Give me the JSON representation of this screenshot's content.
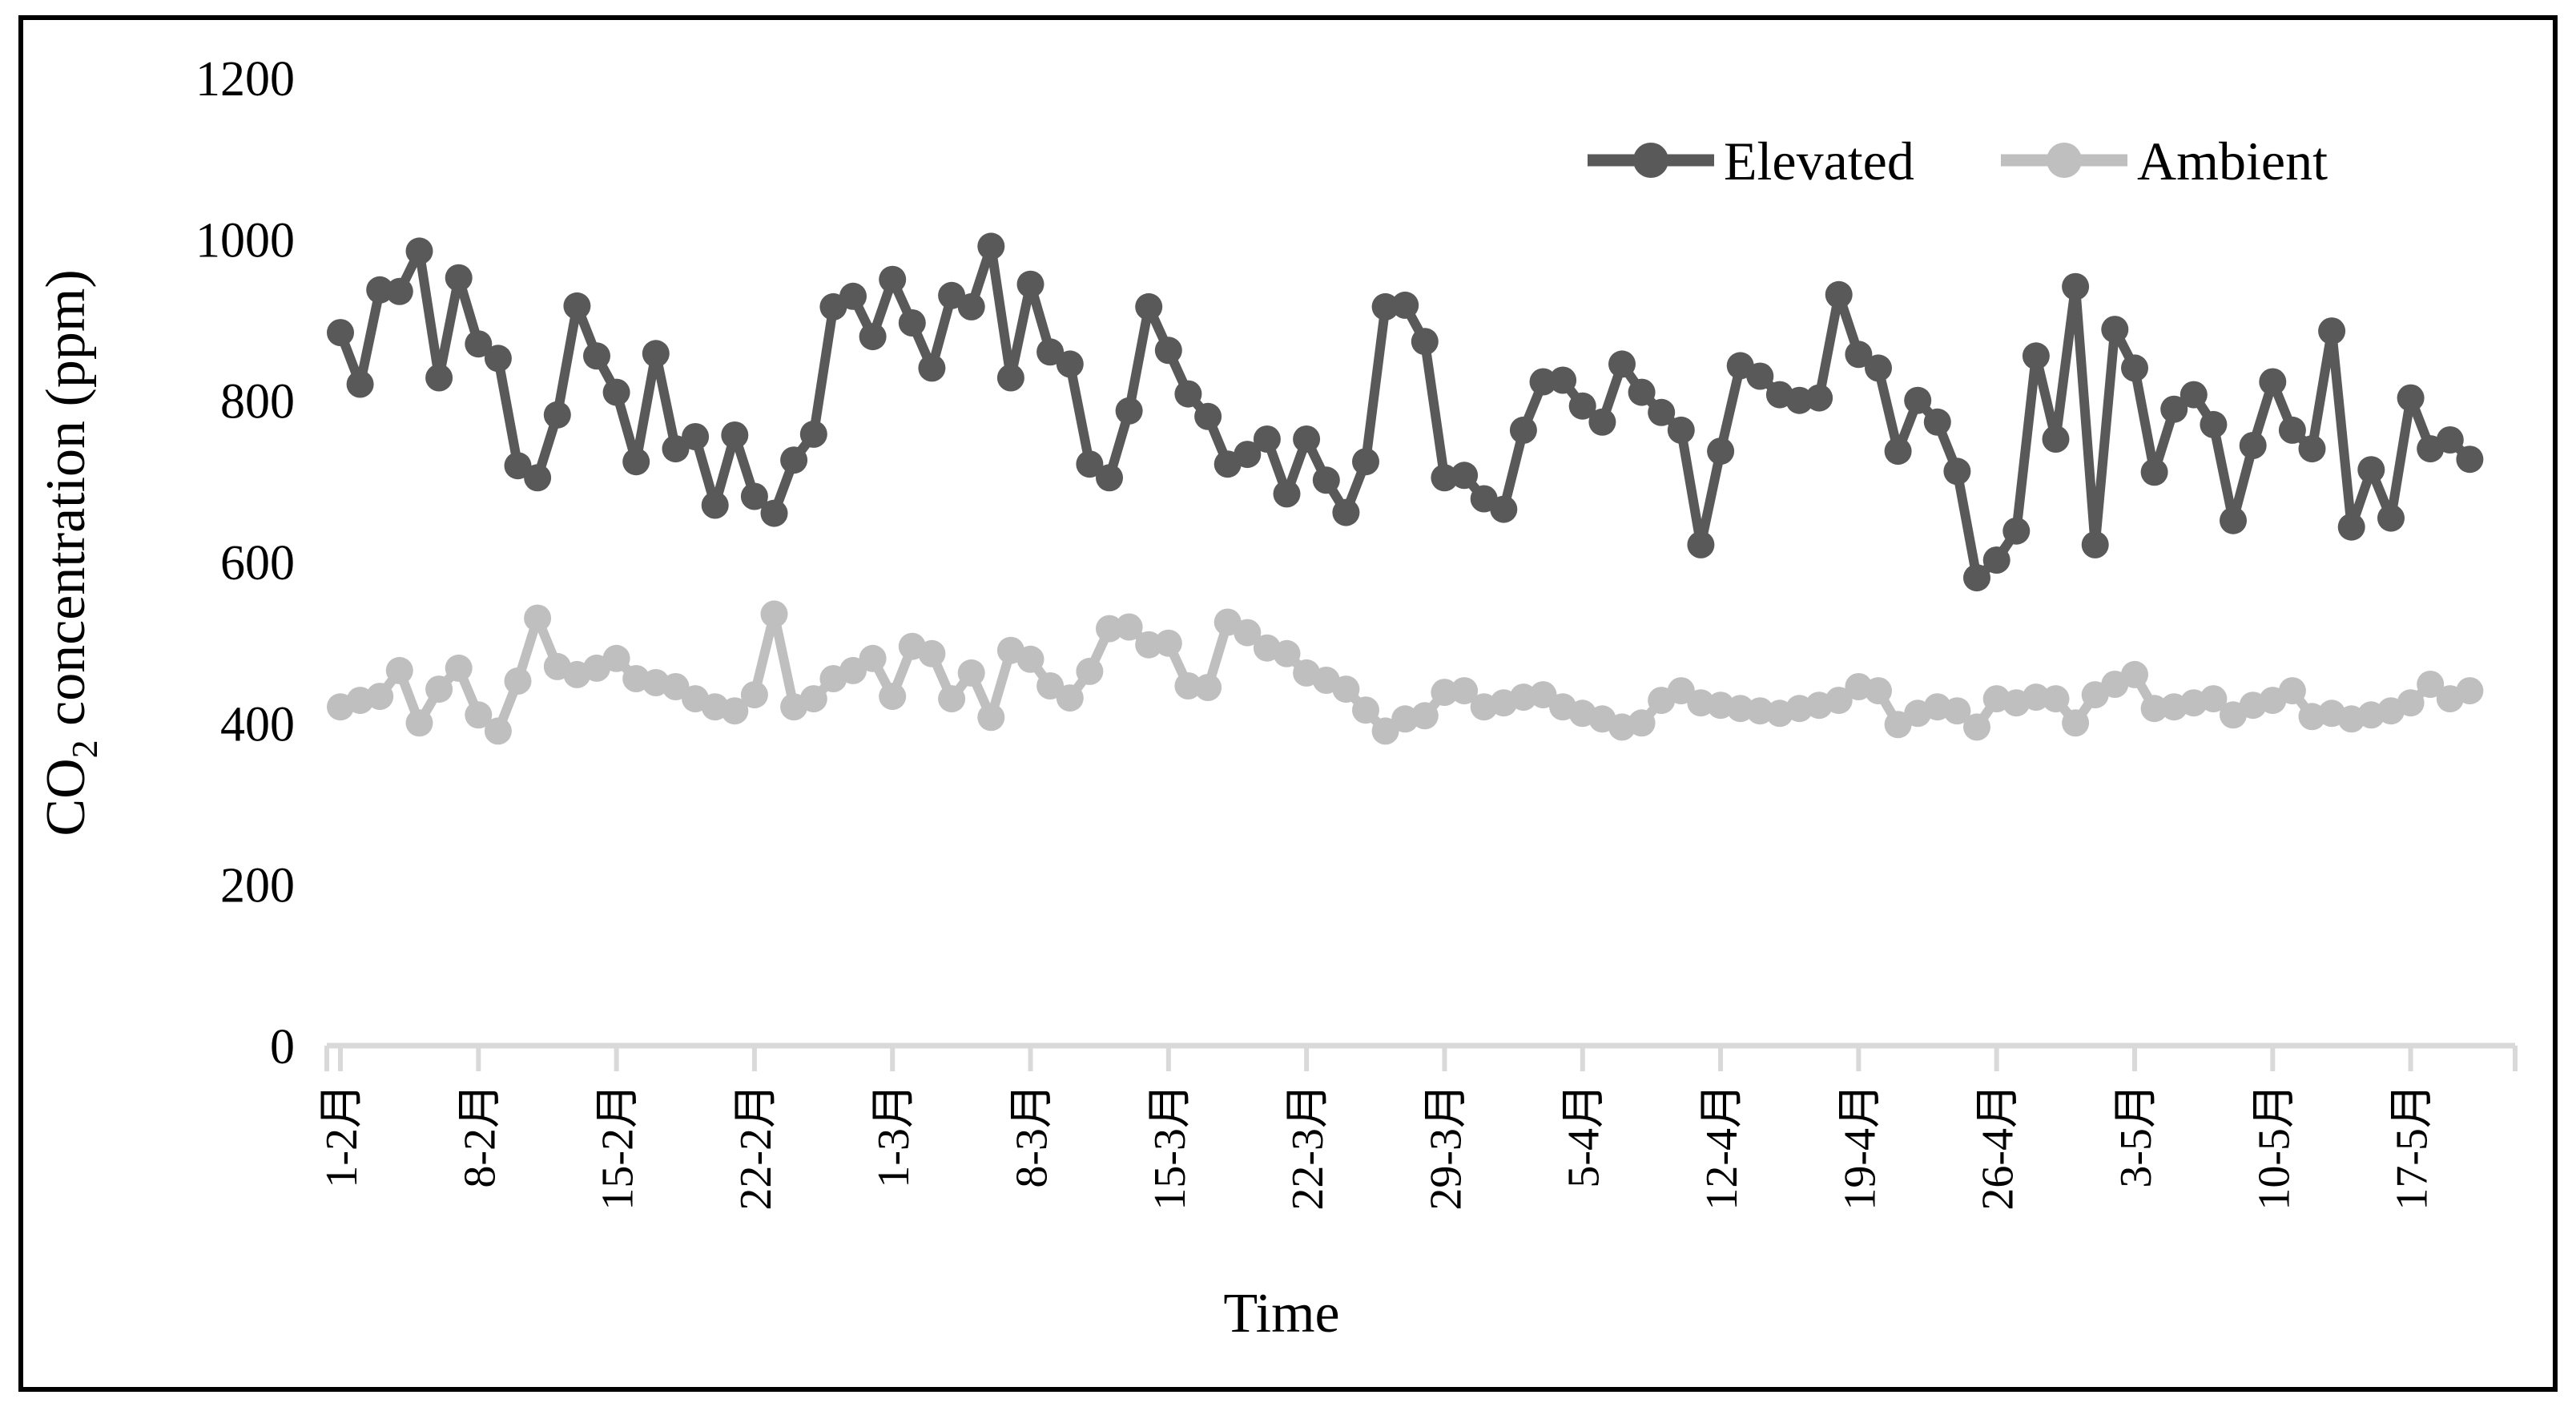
{
  "figure": {
    "background": "#ffffff",
    "border_color": "#000000"
  },
  "chart_data": {
    "type": "line",
    "title": "",
    "xlabel": "Time",
    "ylabel": "CO2 concentration (ppm)",
    "ylabel_parts": {
      "pre": "CO",
      "sub": "2",
      "post": " concentration (ppm)"
    },
    "ylim": [
      0,
      1200
    ],
    "yticks": [
      0,
      200,
      400,
      600,
      800,
      1000,
      1200
    ],
    "grid": false,
    "legend_position": "top-right-inside",
    "axis_color": "#d9d9d9",
    "text_color": "#000000",
    "n_points": 109,
    "x_start_label": "1-2月",
    "x_interval": "daily",
    "x_tick_day_indices": [
      0,
      7,
      14,
      21,
      28,
      35,
      42,
      49,
      56,
      63,
      70,
      77,
      84,
      91,
      98,
      105
    ],
    "x_tick_labels": [
      "1-2月",
      "8-2月",
      "15-2月",
      "22-2月",
      "1-3月",
      "8-3月",
      "15-3月",
      "22-3月",
      "29-3月",
      "5-4月",
      "12-4月",
      "19-4月",
      "26-4月",
      "3-5月",
      "10-5月",
      "17-5月"
    ],
    "series": [
      {
        "name": "Elevated",
        "color": "#595959",
        "values": [
          884,
          820,
          937,
          935,
          985,
          828,
          952,
          870,
          852,
          719,
          704,
          782,
          917,
          855,
          810,
          724,
          858,
          740,
          755,
          670,
          757,
          681,
          660,
          726,
          758,
          916,
          929,
          879,
          950,
          896,
          840,
          930,
          916,
          991,
          828,
          944,
          860,
          845,
          721,
          704,
          787,
          916,
          862,
          808,
          780,
          721,
          733,
          752,
          684,
          752,
          701,
          661,
          724,
          916,
          918,
          873,
          704,
          707,
          678,
          665,
          763,
          823,
          825,
          793,
          773,
          845,
          810,
          785,
          763,
          621,
          737,
          843,
          830,
          807,
          800,
          803,
          931,
          857,
          840,
          737,
          800,
          773,
          712,
          580,
          602,
          638,
          855,
          752,
          941,
          621,
          888,
          840,
          711,
          789,
          807,
          770,
          651,
          744,
          823,
          763,
          740,
          886,
          643,
          714,
          654,
          803,
          740,
          751,
          727
        ]
      },
      {
        "name": "Ambient",
        "color": "#bfbfbf",
        "values": [
          420,
          428,
          433,
          465,
          400,
          442,
          468,
          410,
          390,
          452,
          530,
          470,
          460,
          468,
          480,
          455,
          450,
          445,
          430,
          420,
          415,
          435,
          535,
          420,
          430,
          455,
          465,
          480,
          433,
          495,
          486,
          430,
          462,
          407,
          490,
          479,
          446,
          431,
          464,
          517,
          519,
          497,
          499,
          446,
          444,
          525,
          512,
          493,
          486,
          462,
          453,
          442,
          416,
          390,
          405,
          409,
          438,
          440,
          420,
          425,
          432,
          435,
          420,
          412,
          405,
          395,
          400,
          428,
          440,
          425,
          422,
          418,
          415,
          412,
          418,
          422,
          428,
          445,
          440,
          398,
          412,
          420,
          415,
          395,
          430,
          425,
          432,
          430,
          400,
          435,
          448,
          460,
          418,
          420,
          425,
          430,
          410,
          422,
          428,
          440,
          408,
          412,
          405,
          410,
          415,
          425,
          448,
          430,
          440
        ]
      }
    ]
  }
}
